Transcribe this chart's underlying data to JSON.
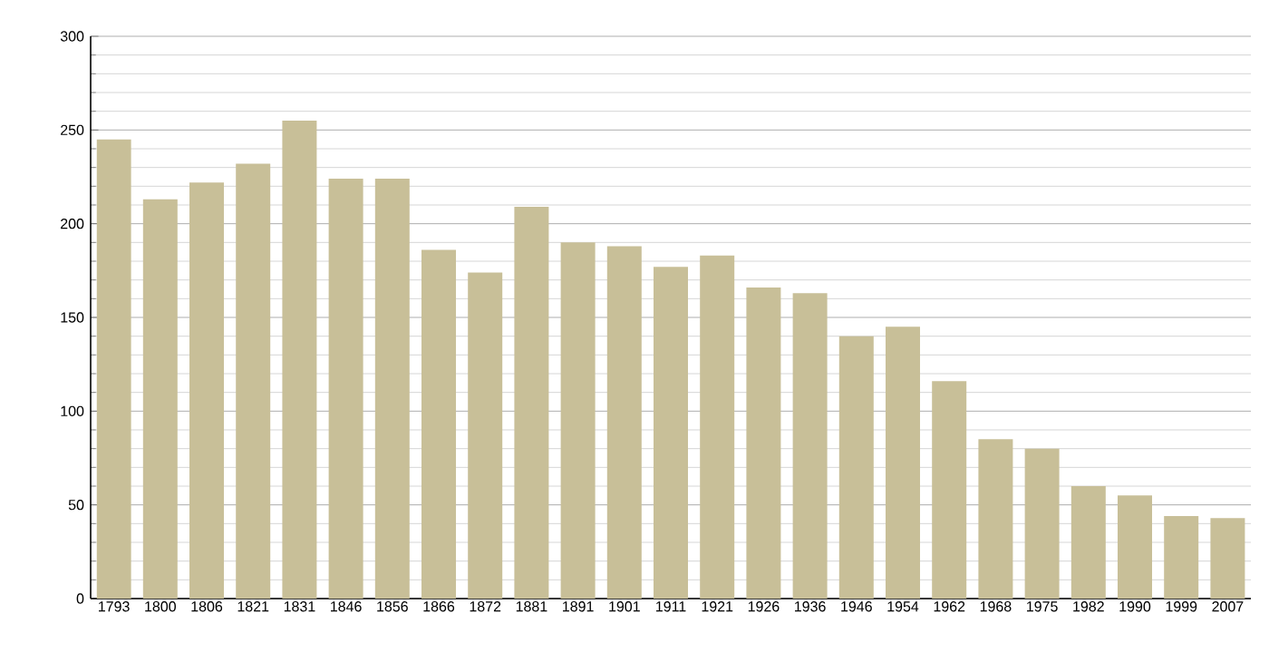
{
  "chart_data": {
    "type": "bar",
    "categories": [
      "1793",
      "1800",
      "1806",
      "1821",
      "1831",
      "1846",
      "1856",
      "1866",
      "1872",
      "1881",
      "1891",
      "1901",
      "1911",
      "1921",
      "1926",
      "1936",
      "1946",
      "1954",
      "1962",
      "1968",
      "1975",
      "1982",
      "1990",
      "1999",
      "2007"
    ],
    "values": [
      245,
      213,
      222,
      232,
      255,
      224,
      224,
      186,
      174,
      209,
      190,
      188,
      177,
      183,
      166,
      163,
      140,
      145,
      116,
      85,
      80,
      60,
      55,
      44,
      43
    ],
    "color": "#c8bf98",
    "ylim": [
      0,
      300
    ],
    "yticks": [
      0,
      50,
      100,
      150,
      200,
      250,
      300
    ],
    "grid": "y"
  }
}
